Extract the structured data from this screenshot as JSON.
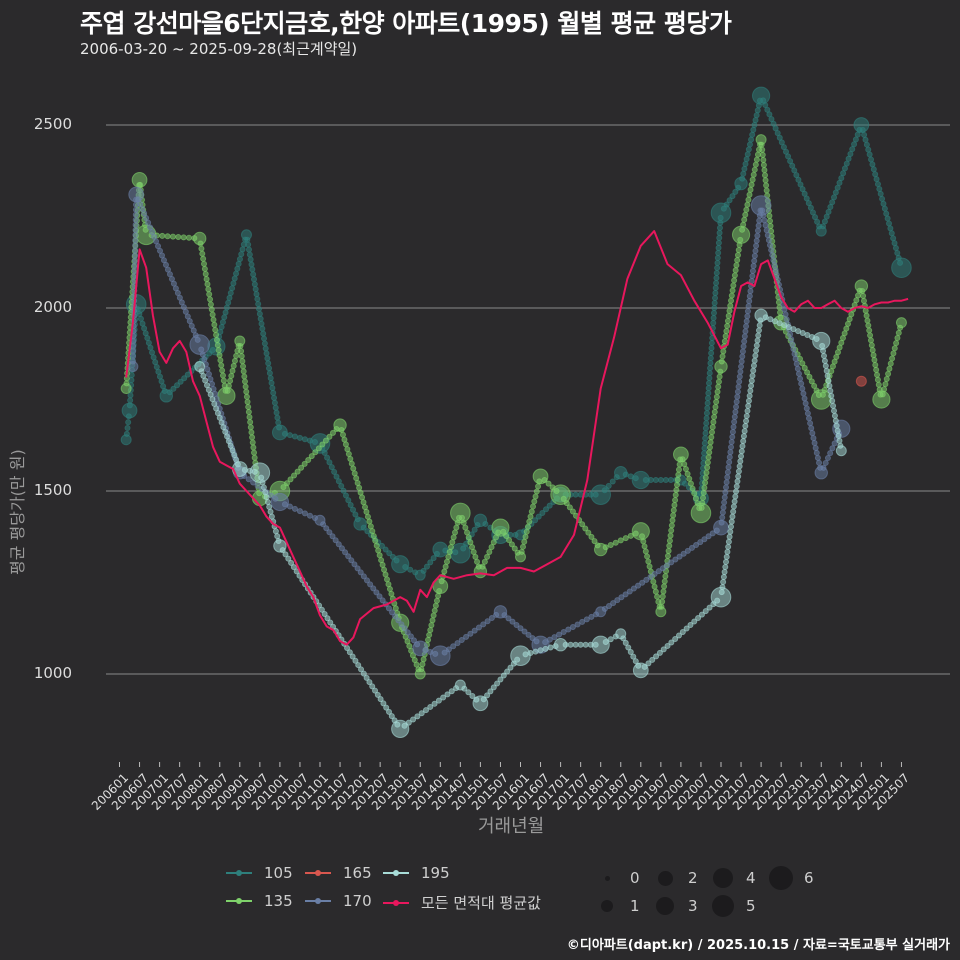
{
  "header": {
    "title": "주엽 강선마을6단지금호,한양 아파트(1995) 월별 평균 평당가",
    "subtitle": "2006-03-20 ~ 2025-09-28(최근계약일)"
  },
  "axes": {
    "ylabel": "평균 평당가(만 원)",
    "xlabel": "거래년월",
    "yticks": [
      "2500",
      "2000",
      "1500",
      "1000"
    ],
    "xticks": [
      "200601",
      "200607",
      "200701",
      "200707",
      "200801",
      "200807",
      "200901",
      "200907",
      "201001",
      "201007",
      "201101",
      "201107",
      "201201",
      "201207",
      "201301",
      "201307",
      "201401",
      "201407",
      "201501",
      "201507",
      "201601",
      "201607",
      "201701",
      "201707",
      "201801",
      "201807",
      "201901",
      "201907",
      "202001",
      "202007",
      "202101",
      "202107",
      "202201",
      "202207",
      "202301",
      "202307",
      "202401",
      "202407",
      "202501",
      "202507"
    ]
  },
  "legend": {
    "series": [
      {
        "label": "105",
        "color": "#2e7f7c"
      },
      {
        "label": "165",
        "color": "#d9574f"
      },
      {
        "label": "195",
        "color": "#a8dcd8"
      },
      {
        "label": "135",
        "color": "#7fd26b"
      },
      {
        "label": "170",
        "color": "#6a7fa6"
      },
      {
        "label": "모든 면적대 평균값",
        "color": "#e8175d"
      }
    ],
    "sizes": [
      "0",
      "1",
      "2",
      "3",
      "4",
      "5",
      "6"
    ]
  },
  "caption": "©디아파트(dapt.kr) / 2025.10.15 / 자료=국토교통부 실거래가",
  "chart_data": {
    "type": "line",
    "title": "주엽 강선마을6단지금호,한양 아파트(1995) 월별 평균 평당가",
    "subtitle": "2006-03-20 ~ 2025-09-28(최근계약일)",
    "xlabel": "거래년월",
    "ylabel": "평균 평당가(만 원)",
    "ylim": [
      760,
      2640
    ],
    "yticks": [
      1000,
      1500,
      2000,
      2500
    ],
    "grid": "horizontal",
    "legend_position": "bottom",
    "series": [
      {
        "name": "모든 면적대 평균값",
        "type": "line",
        "color": "#e8175d",
        "x": [
          "200603",
          "200605",
          "200607",
          "200609",
          "200611",
          "200701",
          "200703",
          "200705",
          "200707",
          "200709",
          "200711",
          "200801",
          "200803",
          "200805",
          "200807",
          "200809",
          "200811",
          "200901",
          "200903",
          "200905",
          "200907",
          "200909",
          "200911",
          "201001",
          "201003",
          "201005",
          "201007",
          "201009",
          "201011",
          "201101",
          "201103",
          "201105",
          "201107",
          "201109",
          "201111",
          "201201",
          "201205",
          "201209",
          "201301",
          "201303",
          "201305",
          "201307",
          "201309",
          "201311",
          "201401",
          "201405",
          "201409",
          "201501",
          "201505",
          "201509",
          "201601",
          "201605",
          "201609",
          "201701",
          "201705",
          "201709",
          "201801",
          "201805",
          "201809",
          "201901",
          "201905",
          "201909",
          "202001",
          "202005",
          "202009",
          "202101",
          "202103",
          "202105",
          "202107",
          "202109",
          "202111",
          "202201",
          "202203",
          "202205",
          "202207",
          "202209",
          "202211",
          "202301",
          "202303",
          "202305",
          "202307",
          "202309",
          "202311",
          "202401",
          "202403",
          "202405",
          "202407",
          "202409",
          "202411",
          "202501",
          "202503",
          "202505",
          "202507",
          "202509"
        ],
        "values": [
          1810,
          1960,
          2160,
          2110,
          1980,
          1880,
          1850,
          1890,
          1910,
          1880,
          1800,
          1760,
          1690,
          1620,
          1580,
          1570,
          1560,
          1520,
          1500,
          1480,
          1460,
          1430,
          1410,
          1400,
          1360,
          1320,
          1280,
          1240,
          1210,
          1160,
          1130,
          1120,
          1090,
          1080,
          1100,
          1150,
          1180,
          1190,
          1210,
          1200,
          1170,
          1230,
          1210,
          1250,
          1270,
          1260,
          1270,
          1275,
          1270,
          1290,
          1290,
          1280,
          1300,
          1320,
          1380,
          1530,
          1780,
          1920,
          2080,
          2170,
          2210,
          2120,
          2090,
          2020,
          1960,
          1890,
          1900,
          1990,
          2060,
          2070,
          2060,
          2120,
          2130,
          2080,
          2030,
          2000,
          1990,
          2010,
          2020,
          2000,
          2000,
          2010,
          2020,
          2000,
          1990,
          2000,
          2005,
          2000,
          2010,
          2015,
          2015,
          2020,
          2020,
          2025
        ],
        "note": "approximate monthly overall average read from the line"
      },
      {
        "name": "105",
        "type": "scatter+connected",
        "color": "#2e7f7c",
        "points": [
          [
            "200603",
            1640
          ],
          [
            "200604",
            1720
          ],
          [
            "200606",
            2010
          ],
          [
            "200703",
            1760
          ],
          [
            "200806",
            1895
          ],
          [
            "200903",
            2200
          ],
          [
            "201001",
            1660
          ],
          [
            "201101",
            1630
          ],
          [
            "201201",
            1410
          ],
          [
            "201301",
            1300
          ],
          [
            "201307",
            1270
          ],
          [
            "201401",
            1340
          ],
          [
            "201407",
            1330
          ],
          [
            "201501",
            1420
          ],
          [
            "201507",
            1380
          ],
          [
            "201601",
            1380
          ],
          [
            "201701",
            1490
          ],
          [
            "201801",
            1490
          ],
          [
            "201807",
            1550
          ],
          [
            "201901",
            1530
          ],
          [
            "202001",
            1530
          ],
          [
            "202007",
            1480
          ],
          [
            "202101",
            2260
          ],
          [
            "202107",
            2340
          ],
          [
            "202201",
            2580
          ],
          [
            "202307",
            2210
          ],
          [
            "202407",
            2500
          ],
          [
            "202507",
            2110
          ]
        ]
      },
      {
        "name": "135",
        "type": "scatter+connected",
        "color": "#7fd26b",
        "points": [
          [
            "200603",
            1780
          ],
          [
            "200607",
            2350
          ],
          [
            "200609",
            2200
          ],
          [
            "200801",
            2190
          ],
          [
            "200809",
            1760
          ],
          [
            "200901",
            1910
          ],
          [
            "200907",
            1480
          ],
          [
            "201001",
            1500
          ],
          [
            "201107",
            1680
          ],
          [
            "201301",
            1140
          ],
          [
            "201307",
            1000
          ],
          [
            "201401",
            1240
          ],
          [
            "201407",
            1440
          ],
          [
            "201501",
            1280
          ],
          [
            "201507",
            1400
          ],
          [
            "201601",
            1320
          ],
          [
            "201607",
            1540
          ],
          [
            "201701",
            1490
          ],
          [
            "201801",
            1340
          ],
          [
            "201901",
            1390
          ],
          [
            "201907",
            1170
          ],
          [
            "202001",
            1600
          ],
          [
            "202007",
            1440
          ],
          [
            "202101",
            1840
          ],
          [
            "202107",
            2200
          ],
          [
            "202201",
            2460
          ],
          [
            "202207",
            1960
          ],
          [
            "202307",
            1750
          ],
          [
            "202407",
            2060
          ],
          [
            "202501",
            1750
          ],
          [
            "202507",
            1960
          ]
        ]
      },
      {
        "name": "165",
        "type": "scatter",
        "color": "#d9574f",
        "points": [
          [
            "202407",
            1800
          ]
        ]
      },
      {
        "name": "170",
        "type": "scatter+connected",
        "color": "#6a7fa6",
        "points": [
          [
            "200605",
            1840
          ],
          [
            "200606",
            2310
          ],
          [
            "200801",
            1900
          ],
          [
            "200901",
            1550
          ],
          [
            "201001",
            1470
          ],
          [
            "201101",
            1420
          ],
          [
            "201307",
            1070
          ],
          [
            "201401",
            1050
          ],
          [
            "201507",
            1170
          ],
          [
            "201607",
            1080
          ],
          [
            "201801",
            1170
          ],
          [
            "202101",
            1400
          ],
          [
            "202201",
            2280
          ],
          [
            "202307",
            1550
          ],
          [
            "202401",
            1670
          ]
        ]
      },
      {
        "name": "195",
        "type": "scatter+connected",
        "color": "#a8dcd8",
        "points": [
          [
            "200801",
            1840
          ],
          [
            "200901",
            1560
          ],
          [
            "200907",
            1550
          ],
          [
            "201001",
            1350
          ],
          [
            "201301",
            850
          ],
          [
            "201407",
            970
          ],
          [
            "201501",
            920
          ],
          [
            "201601",
            1050
          ],
          [
            "201701",
            1080
          ],
          [
            "201801",
            1080
          ],
          [
            "201807",
            1110
          ],
          [
            "201901",
            1010
          ],
          [
            "202101",
            1210
          ],
          [
            "202201",
            1980
          ],
          [
            "202307",
            1910
          ],
          [
            "202401",
            1610
          ]
        ]
      }
    ]
  }
}
